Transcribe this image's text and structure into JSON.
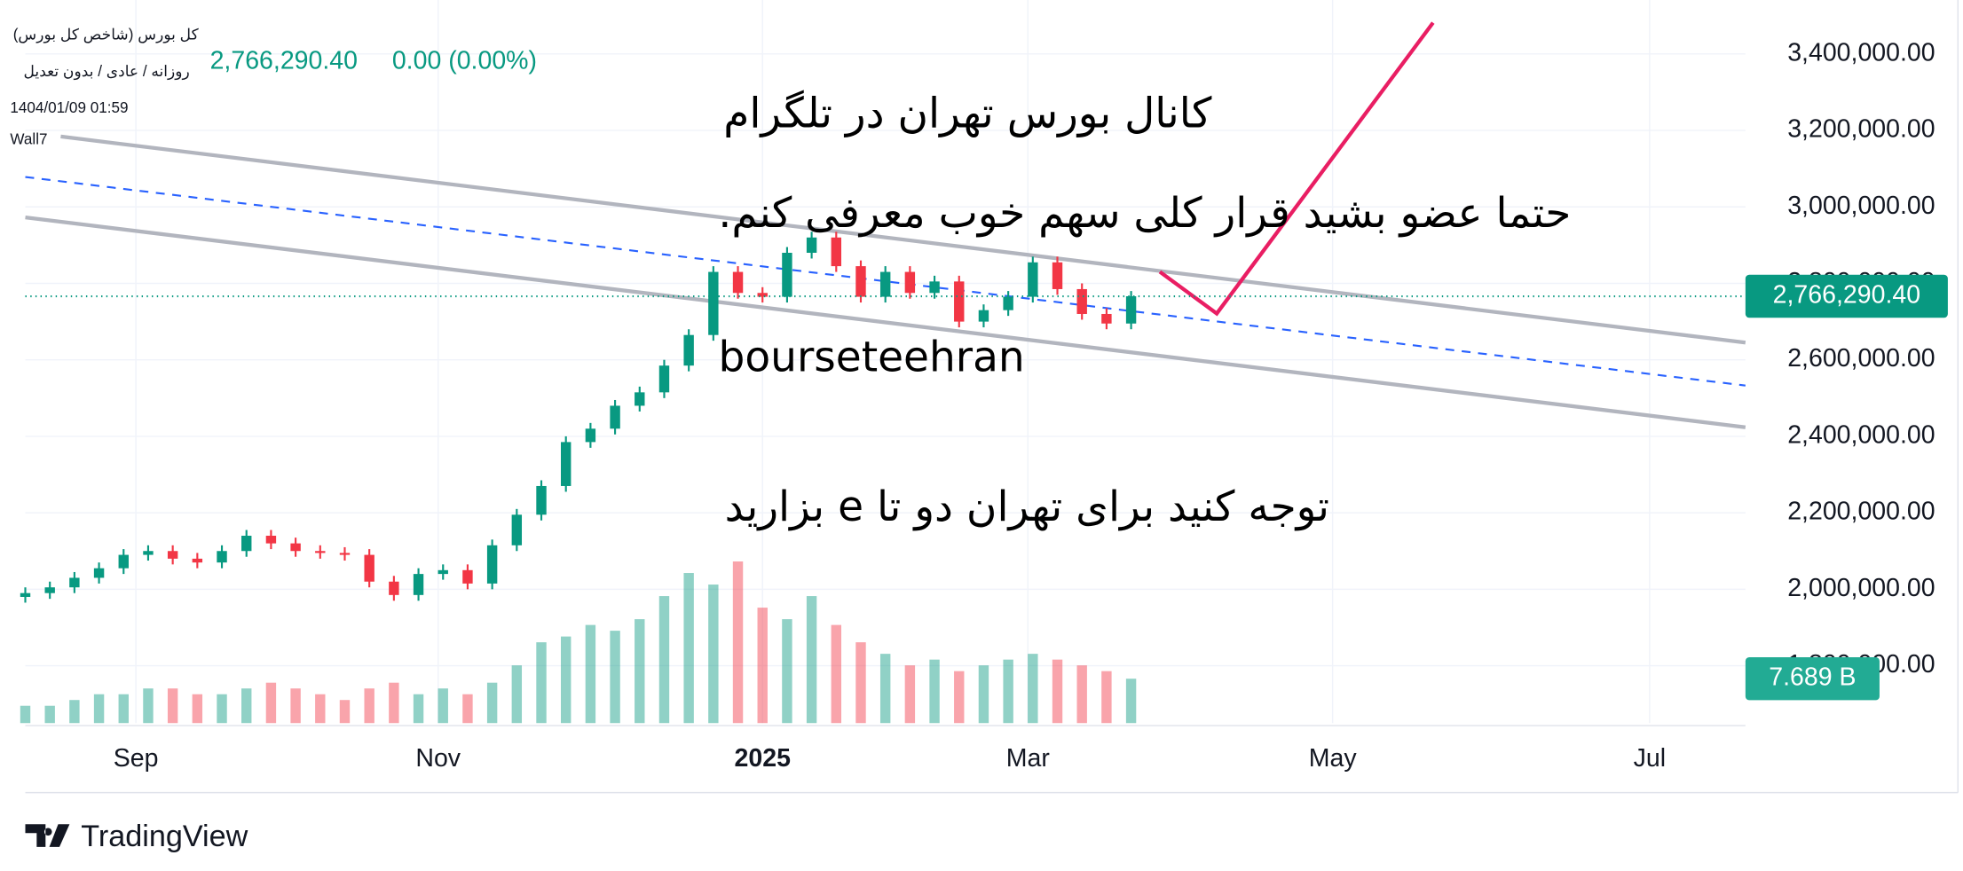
{
  "chart_data": {
    "type": "candlestick",
    "header": {
      "symbol": "کل بورس (شاخص کل بورس)",
      "settings": "روزانه / عادی / بدون تعدیل",
      "timestamp": "1404/01/09 01:59",
      "user": "Wall7",
      "change": "0.00 (0.00%)"
    },
    "annotations": [
      "کانال بورس تهران در تلگرام",
      "حتما عضو بشید قرار کلی سهم خوب معرفی کنم.",
      "bourseteehran",
      "توجه کنید برای تهران دو تا e بزارید"
    ],
    "brand": "TradingView",
    "open": [
      1980000,
      1990000,
      2005000,
      2030000,
      2055000,
      2090000,
      2100000,
      2080000,
      2070000,
      2100000,
      2140000,
      2120000,
      2100000,
      2095000,
      2090000,
      2020000,
      1985000,
      2040000,
      2050000,
      2015000,
      2115000,
      2195000,
      2270000,
      2385000,
      2420000,
      2480000,
      2515000,
      2585000,
      2665000,
      2830000,
      2775000,
      2765000,
      2880000,
      2920000,
      2845000,
      2765000,
      2830000,
      2775000,
      2805000,
      2700000,
      2730000,
      2765000,
      2855000,
      2785000,
      2720000,
      2695000
    ],
    "high": [
      2005000,
      2020000,
      2045000,
      2070000,
      2105000,
      2115000,
      2115000,
      2095000,
      2115000,
      2155000,
      2155000,
      2135000,
      2115000,
      2110000,
      2105000,
      2035000,
      2055000,
      2065000,
      2065000,
      2130000,
      2210000,
      2285000,
      2400000,
      2435000,
      2495000,
      2530000,
      2600000,
      2680000,
      2845000,
      2845000,
      2790000,
      2895000,
      2935000,
      2935000,
      2860000,
      2845000,
      2845000,
      2820000,
      2820000,
      2745000,
      2780000,
      2870000,
      2870000,
      2800000,
      2735000,
      2780000
    ],
    "low": [
      1965000,
      1975000,
      1990000,
      2015000,
      2040000,
      2075000,
      2065000,
      2055000,
      2055000,
      2085000,
      2105000,
      2085000,
      2080000,
      2075000,
      2005000,
      1970000,
      1970000,
      2025000,
      2000000,
      2000000,
      2100000,
      2180000,
      2255000,
      2370000,
      2405000,
      2465000,
      2500000,
      2570000,
      2650000,
      2760000,
      2750000,
      2750000,
      2865000,
      2830000,
      2750000,
      2750000,
      2760000,
      2760000,
      2685000,
      2685000,
      2715000,
      2750000,
      2770000,
      2705000,
      2680000,
      2680000
    ],
    "close": [
      1990000,
      2005000,
      2030000,
      2055000,
      2090000,
      2100000,
      2080000,
      2070000,
      2100000,
      2140000,
      2120000,
      2100000,
      2095000,
      2090000,
      2020000,
      1985000,
      2040000,
      2050000,
      2015000,
      2115000,
      2195000,
      2270000,
      2385000,
      2420000,
      2480000,
      2515000,
      2585000,
      2665000,
      2830000,
      2775000,
      2765000,
      2880000,
      2920000,
      2845000,
      2765000,
      2830000,
      2775000,
      2805000,
      2700000,
      2730000,
      2765000,
      2855000,
      2785000,
      2720000,
      2695000,
      2766290.4
    ],
    "volume": [
      3,
      3,
      4,
      5,
      5,
      6,
      6,
      5,
      5,
      6,
      7,
      6,
      5,
      4,
      6,
      7,
      5,
      6,
      5,
      7,
      10,
      14,
      15,
      17,
      16,
      18,
      22,
      26,
      24,
      28,
      20,
      18,
      22,
      17,
      14,
      12,
      10,
      11,
      9,
      10,
      11,
      12,
      11,
      10,
      9,
      7.689
    ],
    "volume_label": {
      "value": 7.689,
      "label": "7.689 B"
    },
    "volume_ylim": [
      0,
      30
    ],
    "last_price": {
      "value": 2766290.4,
      "label": "2,766,290.40"
    },
    "up_color": "#089981",
    "down_color": "#f23645",
    "xlim": [
      0,
      70
    ],
    "xticks": [
      {
        "value": 4.5,
        "label": "Sep"
      },
      {
        "value": 16.8,
        "label": "Nov"
      },
      {
        "value": 30,
        "label": "2025",
        "bold": true
      },
      {
        "value": 40.8,
        "label": "Mar"
      },
      {
        "value": 53.2,
        "label": "May"
      },
      {
        "value": 66.1,
        "label": "Jul"
      }
    ],
    "ylim": [
      1650000,
      3475000
    ],
    "yticks": [
      {
        "value": 1800000,
        "label": "1,800,000.00"
      },
      {
        "value": 2000000,
        "label": "2,000,000.00"
      },
      {
        "value": 2200000,
        "label": "2,200,000.00"
      },
      {
        "value": 2400000,
        "label": "2,400,000.00"
      },
      {
        "value": 2600000,
        "label": "2,600,000.00"
      },
      {
        "value": 2800000,
        "label": "2,800,000.00"
      },
      {
        "value": 3000000,
        "label": "3,000,000.00"
      },
      {
        "value": 3200000,
        "label": "3,200,000.00"
      },
      {
        "value": 3400000,
        "label": "3,400,000.00"
      }
    ],
    "grid": true
  }
}
